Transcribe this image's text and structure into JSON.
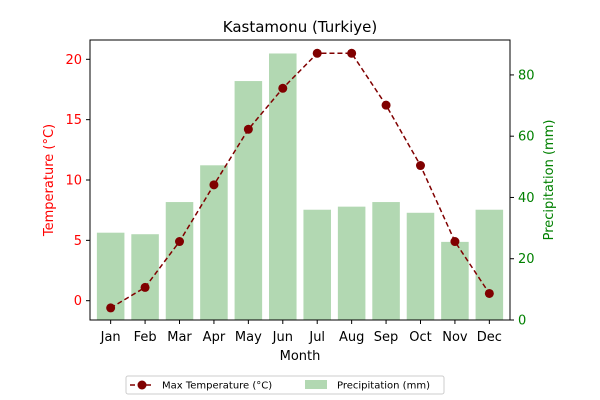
{
  "chart_data": {
    "type": "bar+line",
    "title": "Kastamonu (Turkiye)",
    "xlabel": "Month",
    "ylabel_left": "Temperature (°C)",
    "ylabel_right": "Precipitation (mm)",
    "categories": [
      "Jan",
      "Feb",
      "Mar",
      "Apr",
      "May",
      "Jun",
      "Jul",
      "Aug",
      "Sep",
      "Oct",
      "Nov",
      "Dec"
    ],
    "series": [
      {
        "name": "Max Temperature (°C)",
        "kind": "line",
        "axis": "left",
        "style": "dashed with circle markers",
        "color": "#800000",
        "values": [
          -0.6,
          1.1,
          4.9,
          9.6,
          14.2,
          17.6,
          20.5,
          20.5,
          16.2,
          11.2,
          4.9,
          0.6
        ]
      },
      {
        "name": "Precipitation (mm)",
        "kind": "bar",
        "axis": "right",
        "color": "#b2d8b2",
        "values": [
          28.5,
          28.0,
          38.5,
          50.5,
          78.0,
          87.0,
          36.0,
          37.0,
          38.5,
          35.0,
          25.5,
          36.0
        ]
      }
    ],
    "ylim_left": [
      -1.6,
      21.6
    ],
    "ylim_right": [
      0,
      91.4
    ],
    "yticks_left": [
      0,
      5,
      10,
      15,
      20
    ],
    "yticks_right": [
      0,
      20,
      40,
      60,
      80
    ],
    "left_axis_color": "#ff0000",
    "right_axis_color": "#008000",
    "grid": false,
    "legend_position": "below the chart, two columns"
  }
}
